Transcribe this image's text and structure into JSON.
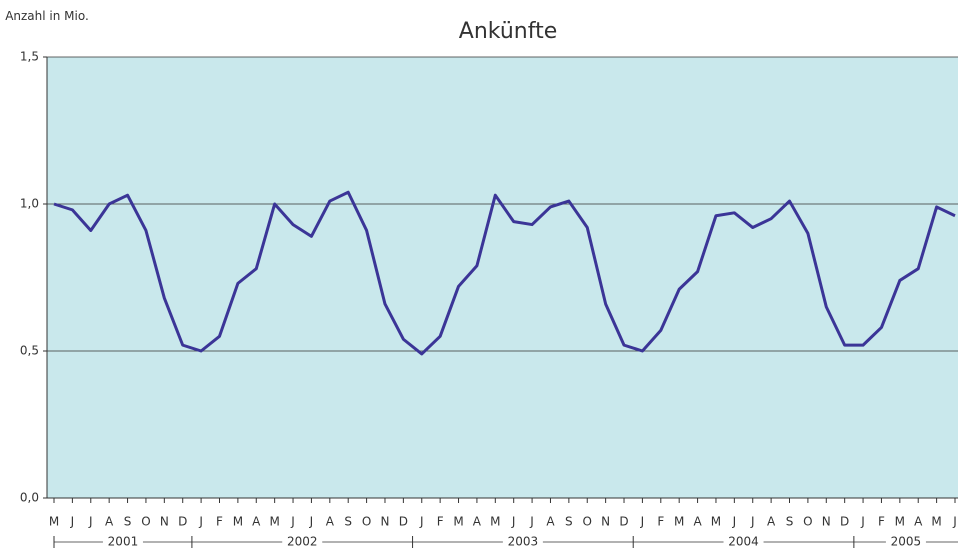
{
  "chart_data": {
    "type": "line",
    "title": "Ankünfte",
    "y_label": "Anzahl in Mio.",
    "categories": [
      "M",
      "J",
      "J",
      "A",
      "S",
      "O",
      "N",
      "D",
      "J",
      "F",
      "M",
      "A",
      "M",
      "J",
      "J",
      "A",
      "S",
      "O",
      "N",
      "D",
      "J",
      "F",
      "M",
      "A",
      "M",
      "J",
      "J",
      "A",
      "S",
      "O",
      "N",
      "D",
      "J",
      "F",
      "M",
      "A",
      "M",
      "J",
      "J",
      "A",
      "S",
      "O",
      "N",
      "D",
      "J",
      "F",
      "M",
      "A",
      "M",
      "J"
    ],
    "year_groups": [
      "2001",
      "2002",
      "2003",
      "2004",
      "2005"
    ],
    "series": [
      {
        "name": "Ankünfte",
        "color": "#3b3597",
        "values": [
          1.0,
          0.98,
          0.91,
          1.0,
          1.03,
          0.91,
          0.68,
          0.52,
          0.5,
          0.55,
          0.73,
          0.78,
          1.0,
          0.93,
          0.89,
          1.01,
          1.04,
          0.91,
          0.66,
          0.54,
          0.49,
          0.55,
          0.72,
          0.79,
          1.03,
          0.94,
          0.93,
          0.99,
          1.01,
          0.92,
          0.66,
          0.52,
          0.5,
          0.57,
          0.71,
          0.77,
          0.96,
          0.97,
          0.92,
          0.95,
          1.01,
          0.9,
          0.65,
          0.52,
          0.52,
          0.58,
          0.74,
          0.78,
          0.99,
          0.96
        ]
      }
    ],
    "ylim": [
      0,
      1.5
    ],
    "yticks": [
      {
        "value": 0,
        "label": "0,0"
      },
      {
        "value": 0.5,
        "label": "0,5"
      },
      {
        "value": 1,
        "label": "1,0"
      },
      {
        "value": 1.5,
        "label": "1,5"
      }
    ],
    "grid": true,
    "background": "#c9e8ec"
  }
}
